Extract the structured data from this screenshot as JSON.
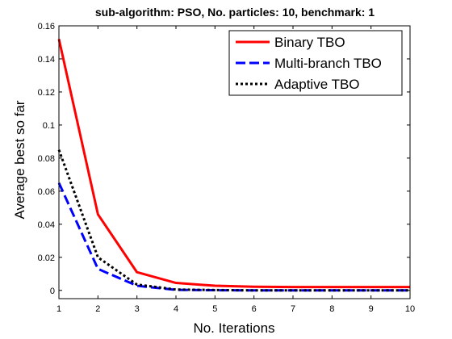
{
  "chart_data": {
    "type": "line",
    "title": "sub-algorithm: PSO, No. particles: 10, benchmark: 1",
    "xlabel": "No. Iterations",
    "ylabel": "Average best so far",
    "x": [
      1,
      2,
      3,
      4,
      5,
      6,
      7,
      8,
      9,
      10
    ],
    "xlim": [
      1,
      10
    ],
    "ylim": [
      -0.005,
      0.16
    ],
    "xticks": [
      "1",
      "2",
      "3",
      "4",
      "5",
      "6",
      "7",
      "8",
      "9",
      "10"
    ],
    "yticks": [
      "0",
      "0.02",
      "0.04",
      "0.06",
      "0.08",
      "0.1",
      "0.12",
      "0.14",
      "0.16"
    ],
    "ytick_values": [
      0,
      0.02,
      0.04,
      0.06,
      0.08,
      0.1,
      0.12,
      0.14,
      0.16
    ],
    "grid": false,
    "legend_position": "top-right",
    "series": [
      {
        "name": "Binary TBO",
        "color": "#ff0000",
        "style": "solid",
        "values": [
          0.152,
          0.046,
          0.011,
          0.0045,
          0.0028,
          0.0022,
          0.002,
          0.002,
          0.002,
          0.002
        ]
      },
      {
        "name": "Multi-branch TBO",
        "color": "#0000ff",
        "style": "dashed",
        "values": [
          0.065,
          0.013,
          0.0028,
          0.0003,
          0.0001,
          0.0,
          0.0,
          0.0,
          0.0,
          0.0
        ]
      },
      {
        "name": "Adaptive TBO",
        "color": "#000000",
        "style": "dotted",
        "values": [
          0.085,
          0.02,
          0.0035,
          0.0005,
          0.0002,
          0.0,
          0.0,
          0.0,
          0.0,
          0.0
        ]
      }
    ]
  }
}
